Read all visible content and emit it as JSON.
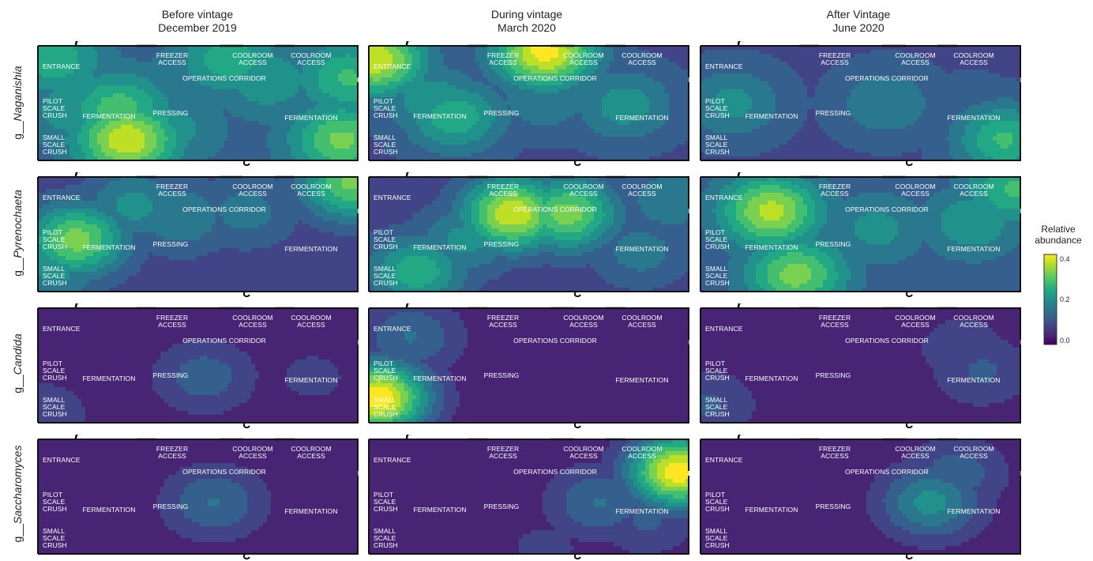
{
  "chart_data": {
    "type": "heatmap",
    "columns": [
      {
        "title_line1": "Before vintage",
        "title_line2": "December 2019"
      },
      {
        "title_line1": "During vintage",
        "title_line2": "March 2020"
      },
      {
        "title_line1": "After Vintage",
        "title_line2": "June 2020"
      }
    ],
    "rows": [
      {
        "prefix": "g__",
        "genus": "Naganishia"
      },
      {
        "prefix": "g__",
        "genus": "Pyrenochaeta"
      },
      {
        "prefix": "g__",
        "genus": "Candida"
      },
      {
        "prefix": "g__",
        "genus": "Saccharomyces"
      }
    ],
    "room_labels": {
      "entrance": "ENTRANCE",
      "freezer": "FREEZER\nACCESS",
      "coolroom1": "COOLROOM\nACCESS",
      "coolroom2": "COOLROOM\nACCESS",
      "corridor": "OPERATIONS CORRIDOR",
      "pilot": "PILOT\nSCALE\nCRUSH",
      "fermentation_left": "FERMENTATION",
      "pressing": "PRESSING",
      "fermentation_right": "FERMENTATION",
      "small": "SMALL\nSCALE\nCRUSH"
    },
    "colorbar": {
      "title": "Relative abundance",
      "range": [
        0.0,
        0.45
      ],
      "ticks": [
        "0.0",
        "0.2",
        "0.4"
      ],
      "colormap": "viridis"
    },
    "panels": [
      [
        {
          "background": 0.13,
          "hotspots": [
            [
              0.05,
              0.12,
              0.28
            ],
            [
              0.12,
              0.55,
              0.24
            ],
            [
              0.25,
              0.55,
              0.32
            ],
            [
              0.28,
              0.82,
              0.42
            ],
            [
              0.42,
              0.72,
              0.22
            ],
            [
              0.5,
              0.25,
              0.2
            ],
            [
              0.6,
              0.12,
              0.28
            ],
            [
              0.72,
              0.3,
              0.24
            ],
            [
              0.97,
              0.28,
              0.3
            ],
            [
              0.95,
              0.82,
              0.35
            ],
            [
              0.08,
              0.88,
              0.02
            ],
            [
              0.55,
              0.9,
              0.05
            ]
          ]
        },
        {
          "background": 0.1,
          "hotspots": [
            [
              0.02,
              0.12,
              0.42
            ],
            [
              0.55,
              0.05,
              0.45
            ],
            [
              0.2,
              0.48,
              0.24
            ],
            [
              0.27,
              0.62,
              0.28
            ],
            [
              0.55,
              0.45,
              0.2
            ],
            [
              0.8,
              0.52,
              0.23
            ],
            [
              0.85,
              0.35,
              0.08
            ],
            [
              0.1,
              0.85,
              0.05
            ],
            [
              0.9,
              0.9,
              0.05
            ]
          ]
        },
        {
          "background": 0.1,
          "hotspots": [
            [
              0.1,
              0.5,
              0.22
            ],
            [
              0.58,
              0.5,
              0.2
            ],
            [
              0.85,
              0.55,
              0.14
            ],
            [
              0.95,
              0.82,
              0.3
            ],
            [
              0.2,
              0.85,
              0.04
            ],
            [
              0.88,
              0.35,
              0.04
            ]
          ]
        }
      ],
      [
        {
          "background": 0.08,
          "hotspots": [
            [
              0.12,
              0.55,
              0.36
            ],
            [
              0.3,
              0.25,
              0.22
            ],
            [
              0.45,
              0.35,
              0.2
            ],
            [
              0.65,
              0.3,
              0.18
            ],
            [
              0.98,
              0.05,
              0.35
            ],
            [
              0.05,
              0.8,
              0.22
            ],
            [
              0.85,
              0.7,
              0.02
            ],
            [
              0.6,
              0.9,
              0.02
            ]
          ]
        },
        {
          "background": 0.08,
          "hotspots": [
            [
              0.45,
              0.32,
              0.42
            ],
            [
              0.62,
              0.32,
              0.36
            ],
            [
              0.3,
              0.55,
              0.22
            ],
            [
              0.15,
              0.82,
              0.28
            ],
            [
              0.85,
              0.65,
              0.18
            ],
            [
              0.95,
              0.2,
              0.2
            ],
            [
              0.7,
              0.9,
              0.02
            ]
          ]
        },
        {
          "background": 0.12,
          "hotspots": [
            [
              0.22,
              0.3,
              0.4
            ],
            [
              0.3,
              0.85,
              0.36
            ],
            [
              0.55,
              0.45,
              0.22
            ],
            [
              0.85,
              0.4,
              0.24
            ],
            [
              0.98,
              0.1,
              0.3
            ],
            [
              0.95,
              0.8,
              0.02
            ]
          ]
        }
      ],
      [
        {
          "background": 0.03,
          "hotspots": [
            [
              0.52,
              0.6,
              0.14
            ],
            [
              0.86,
              0.6,
              0.08
            ],
            [
              0.02,
              0.92,
              0.1
            ]
          ]
        },
        {
          "background": 0.03,
          "hotspots": [
            [
              0.13,
              0.25,
              0.16
            ],
            [
              0.03,
              0.78,
              0.46
            ],
            [
              0.9,
              0.2,
              0.04
            ]
          ]
        },
        {
          "background": 0.03,
          "hotspots": [
            [
              0.82,
              0.35,
              0.1
            ],
            [
              0.88,
              0.55,
              0.12
            ],
            [
              0.02,
              0.85,
              0.12
            ],
            [
              0.7,
              0.95,
              0.06
            ]
          ]
        }
      ],
      [
        {
          "background": 0.03,
          "hotspots": [
            [
              0.55,
              0.55,
              0.16
            ],
            [
              0.02,
              0.28,
              0.04
            ]
          ]
        },
        {
          "background": 0.03,
          "hotspots": [
            [
              0.97,
              0.28,
              0.46
            ],
            [
              0.72,
              0.55,
              0.16
            ],
            [
              0.87,
              0.7,
              0.12
            ],
            [
              0.55,
              0.95,
              0.08
            ]
          ]
        },
        {
          "background": 0.03,
          "hotspots": [
            [
              0.72,
              0.55,
              0.22
            ],
            [
              0.8,
              0.3,
              0.14
            ]
          ]
        }
      ]
    ]
  }
}
